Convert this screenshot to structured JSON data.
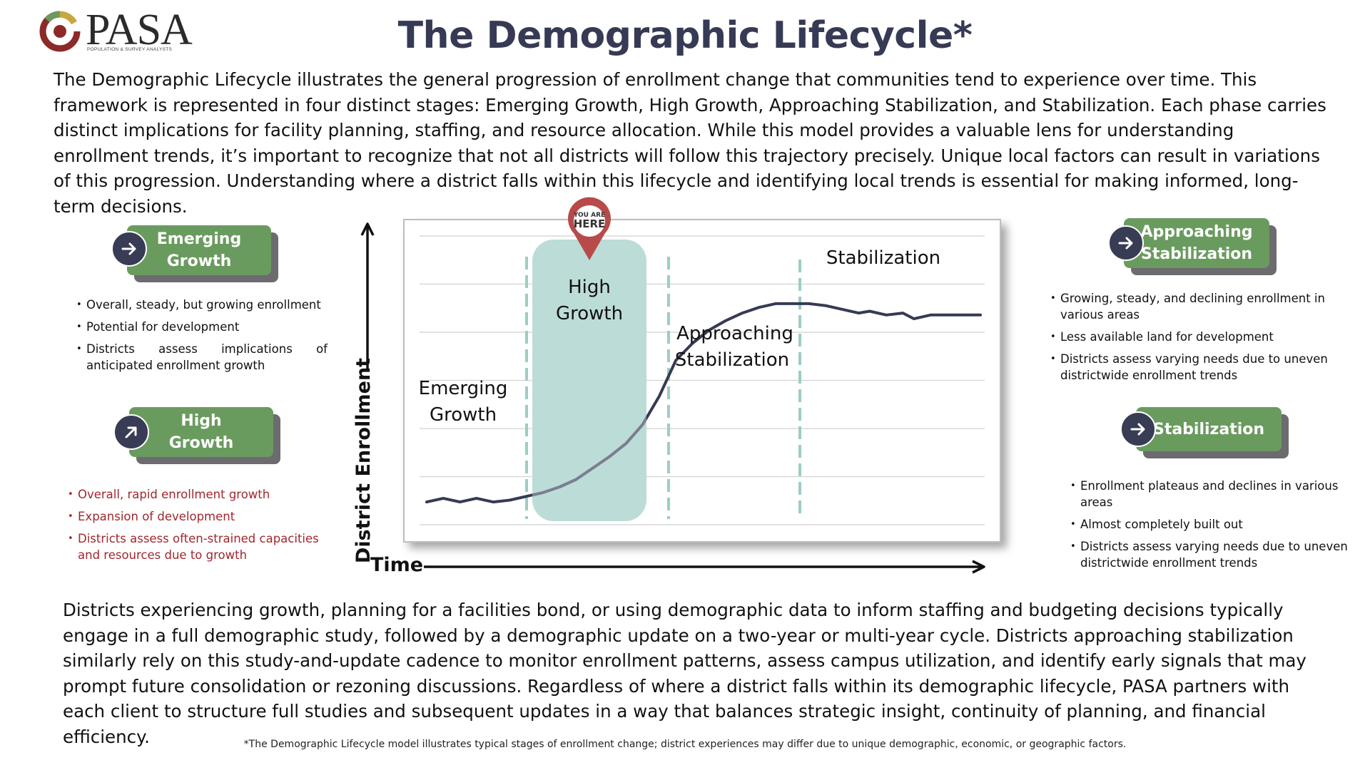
{
  "logo": {
    "name": "PASA",
    "tagline": "POPULATION & SURVEY ANALYSTS"
  },
  "title": "The Demographic Lifecycle*",
  "intro": "The Demographic Lifecycle illustrates the general progression of enrollment change that communities tend to experience over time. This framework is represented in four distinct stages: Emerging Growth, High Growth, Approaching Stabilization, and Stabilization. Each phase carries distinct implications for facility planning, staffing, and resource allocation. While this model provides a valuable lens for understanding enrollment trends, it’s important to recognize that not all districts will follow this trajectory precisely. Unique local factors can result in variations of this progression. Understanding where a district falls within this lifecycle and identifying local trends is essential for making informed, long-term decisions.",
  "stages": [
    {
      "line1": "Emerging",
      "line2": "Growth",
      "icon": "arrow-right-icon",
      "bullets": [
        "Overall, steady, but growing enrollment",
        "Potential for development",
        "Districts assess implications of anticipated enrollment growth"
      ]
    },
    {
      "line1": "High",
      "line2": "Growth",
      "icon": "arrow-up-right-icon",
      "bullets": [
        "Overall, rapid enrollment growth",
        "Expansion of development",
        "Districts assess often-strained capacities and resources due to growth"
      ]
    },
    {
      "line1": "Approaching",
      "line2": "Stabilization",
      "icon": "arrow-right-icon",
      "bullets": [
        "Growing, steady, and declining enrollment in various areas",
        "Less available land for development",
        "Districts assess varying needs due to uneven districtwide enrollment trends"
      ]
    },
    {
      "line1": "Stabilization",
      "line2": "",
      "icon": "arrow-right-icon",
      "bullets": [
        "Enrollment plateaus and declines in various areas",
        "Almost completely built out",
        "Districts assess varying needs due to uneven districtwide enrollment trends"
      ]
    }
  ],
  "chart": {
    "ylabel": "District Enrollment",
    "xlabel": "Time",
    "marker_line1": "YOU ARE",
    "marker_line2": "HERE",
    "regions": [
      {
        "line1": "Emerging",
        "line2": "Growth"
      },
      {
        "line1": "High",
        "line2": "Growth"
      },
      {
        "line1": "Approaching",
        "line2": "Stabilization"
      },
      {
        "line1": "Stabilization",
        "line2": ""
      }
    ],
    "curve": [
      [
        0.0,
        0.09
      ],
      [
        0.03,
        0.11
      ],
      [
        0.06,
        0.09
      ],
      [
        0.09,
        0.11
      ],
      [
        0.12,
        0.09
      ],
      [
        0.15,
        0.1
      ],
      [
        0.18,
        0.12
      ],
      [
        0.21,
        0.14
      ],
      [
        0.24,
        0.17
      ],
      [
        0.27,
        0.21
      ],
      [
        0.3,
        0.27
      ],
      [
        0.33,
        0.33
      ],
      [
        0.36,
        0.4
      ],
      [
        0.39,
        0.5
      ],
      [
        0.42,
        0.65
      ],
      [
        0.45,
        0.84
      ],
      [
        0.48,
        0.93
      ],
      [
        0.51,
        1.0
      ],
      [
        0.54,
        1.05
      ],
      [
        0.57,
        1.09
      ],
      [
        0.6,
        1.12
      ],
      [
        0.63,
        1.14
      ],
      [
        0.66,
        1.14
      ],
      [
        0.69,
        1.14
      ],
      [
        0.72,
        1.13
      ],
      [
        0.75,
        1.11
      ],
      [
        0.78,
        1.09
      ],
      [
        0.8,
        1.1
      ],
      [
        0.83,
        1.08
      ],
      [
        0.86,
        1.09
      ],
      [
        0.88,
        1.06
      ],
      [
        0.91,
        1.08
      ],
      [
        0.94,
        1.08
      ],
      [
        0.97,
        1.08
      ],
      [
        1.0,
        1.08
      ]
    ],
    "colors": {
      "line": "#363a54",
      "highlight": "#bcdcd7",
      "divider": "#9ccdc4",
      "marker": "#b84a4a",
      "badge": "#6a9b5e",
      "badge_shadow": "#6d6b6f",
      "circle": "#393c55"
    }
  },
  "outro": "Districts experiencing growth, planning for a facilities bond, or using demographic data to inform staffing and budgeting decisions typically engage in a full demographic study, followed by a demographic update on a two-year or multi-year cycle. Districts approaching stabilization similarly rely on this study-and-update cadence to monitor enrollment patterns, assess campus utilization, and identify early signals that may prompt future consolidation or rezoning discussions. Regardless of where a district falls within its demographic lifecycle, PASA partners with each client to structure full studies and subsequent updates in a way that balances strategic insight, continuity of planning, and financial efficiency.",
  "footnote": "*The Demographic Lifecycle model illustrates typical stages of enrollment change; district experiences may differ due to unique demographic, economic, or geographic factors."
}
